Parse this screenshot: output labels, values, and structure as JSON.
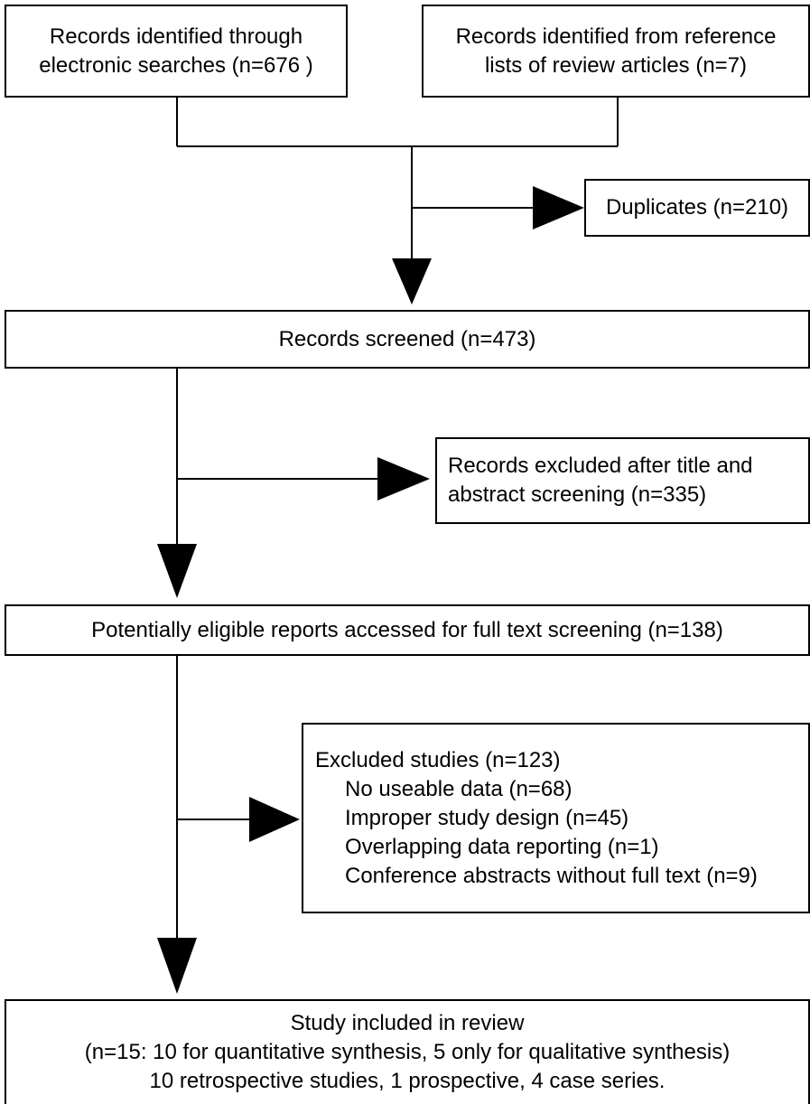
{
  "boxes": {
    "electronic": {
      "lines": [
        "Records identified through",
        "electronic searches (n=676 )"
      ]
    },
    "reference": {
      "lines": [
        "Records identified from reference",
        "lists of review articles (n=7)"
      ]
    },
    "duplicates": {
      "text": "Duplicates (n=210)"
    },
    "screened": {
      "text": "Records screened (n=473)"
    },
    "excluded_title_abstract": {
      "lines": [
        "Records excluded after title and",
        "abstract screening (n=335)"
      ]
    },
    "eligible": {
      "text": "Potentially eligible reports accessed for full text screening (n=138)"
    },
    "excluded_studies": {
      "heading": "Excluded studies (n=123)",
      "items": [
        "No useable data (n=68)",
        "Improper study design (n=45)",
        "Overlapping data reporting (n=1)",
        "Conference abstracts without full text (n=9)"
      ]
    },
    "included": {
      "lines": [
        "Study included in review",
        "(n=15: 10 for quantitative synthesis, 5 only for qualitative synthesis)",
        "10 retrospective studies, 1 prospective, 4 case series."
      ]
    }
  },
  "colors": {
    "line": "#000000",
    "background": "#ffffff",
    "text": "#000000"
  }
}
